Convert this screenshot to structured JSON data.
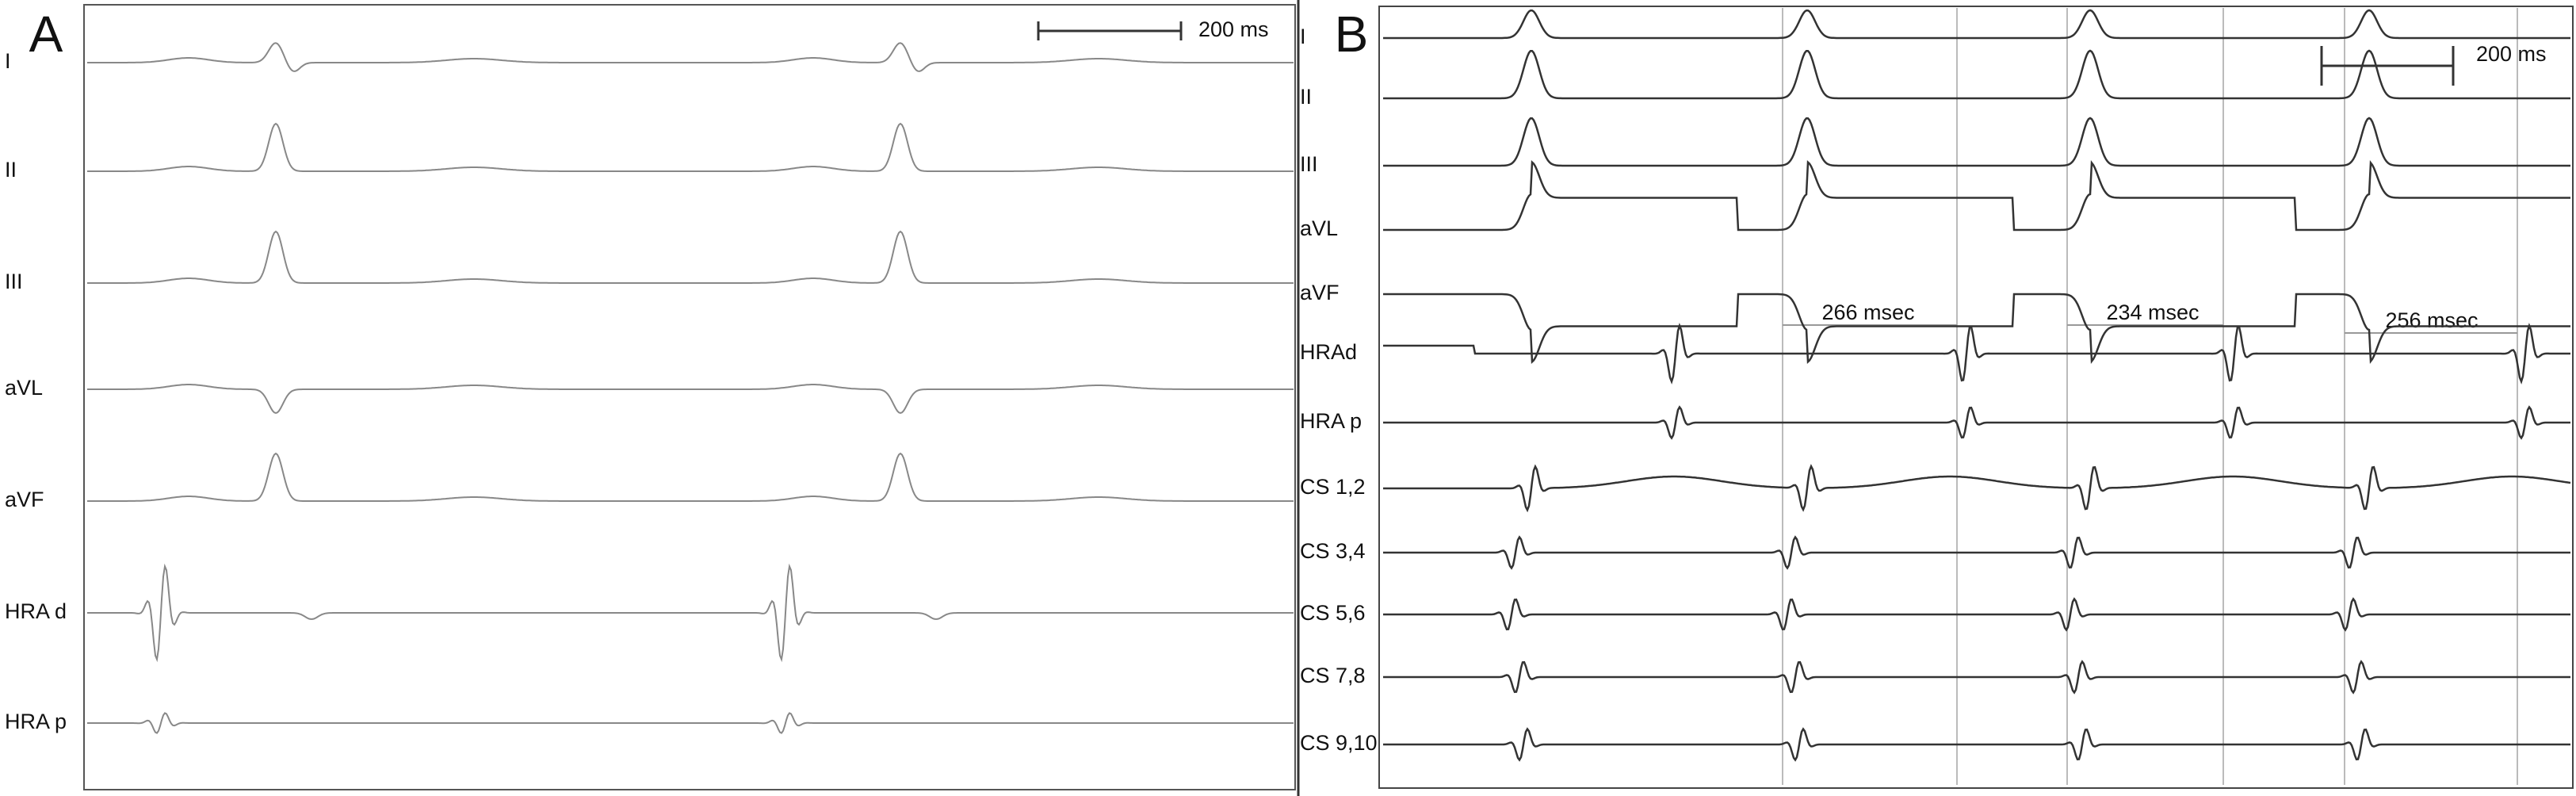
{
  "panels": [
    {
      "label": "A",
      "scale_bar": "200 ms",
      "channels": [
        "I",
        "II",
        "III",
        "aVL",
        "aVF",
        "HRA d",
        "HRA p"
      ]
    },
    {
      "label": "B",
      "scale_bar": "200 ms",
      "channels": [
        "I",
        "II",
        "III",
        "aVL",
        "aVF",
        "HRAd",
        "HRA p",
        "CS 1,2",
        "CS 3,4",
        "CS 5,6",
        "CS 7,8",
        "CS 9,10"
      ],
      "intervals": [
        "266 msec",
        "234 msec",
        "256 msec"
      ]
    }
  ]
}
